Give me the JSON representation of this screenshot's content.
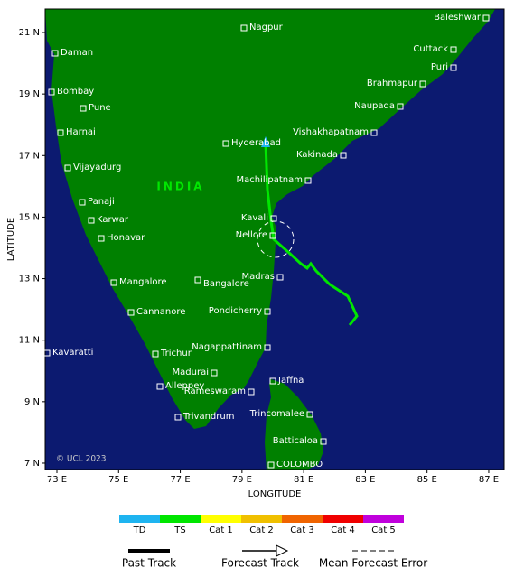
{
  "map": {
    "cities": [
      "Baleshwar",
      "Nagpur",
      "Daman",
      "Cuttack",
      "Puri",
      "Bombay",
      "Brahmapur",
      "Pune",
      "Naupada",
      "Harnai",
      "Vishakhapatnam",
      "Hyderabad",
      "Kakinada",
      "Vijayadurg",
      "Machilipatnam",
      "Panaji",
      "Kavali",
      "Karwar",
      "Nellore",
      "Honavar",
      "Madras",
      "Mangalore",
      "Bangalore",
      "Cannanore",
      "Pondicherry",
      "Nagappattinam",
      "Trichur",
      "Kavaratti",
      "Madurai",
      "Jaffna",
      "Alleppey",
      "Rameswaram",
      "Trincomalee",
      "Trivandrum",
      "Batticaloa",
      "COLOMBO"
    ],
    "country_label": "INDIA",
    "copyright": "© UCL 2023",
    "lat_ticks": [
      {
        "value": 7,
        "label": "7 N"
      },
      {
        "value": 9,
        "label": "9 N"
      },
      {
        "value": 11,
        "label": "11 N"
      },
      {
        "value": 13,
        "label": "13 N"
      },
      {
        "value": 15,
        "label": "15 N"
      },
      {
        "value": 17,
        "label": "17 N"
      },
      {
        "value": 19,
        "label": "19 N"
      },
      {
        "value": 21,
        "label": "21 N"
      }
    ],
    "lon_ticks": [
      {
        "value": 73,
        "label": "73 E"
      },
      {
        "value": 75,
        "label": "75 E"
      },
      {
        "value": 77,
        "label": "77 E"
      },
      {
        "value": 79,
        "label": "79 E"
      },
      {
        "value": 81,
        "label": "81 E"
      },
      {
        "value": 83,
        "label": "83 E"
      },
      {
        "value": 85,
        "label": "85 E"
      },
      {
        "value": 87,
        "label": "87 E"
      }
    ],
    "y_axis_label": "LATITUDE",
    "x_axis_label": "LONGITUDE"
  },
  "legend": {
    "intensity": [
      {
        "name": "TD",
        "color": "#1eb4f0"
      },
      {
        "name": "TS",
        "color": "#00e600"
      },
      {
        "name": "Cat 1",
        "color": "#ffff00"
      },
      {
        "name": "Cat 2",
        "color": "#f0c000"
      },
      {
        "name": "Cat 3",
        "color": "#f06400"
      },
      {
        "name": "Cat 4",
        "color": "#f00000"
      },
      {
        "name": "Cat 5",
        "color": "#c000dc"
      }
    ],
    "lines": [
      "Past Track",
      "Forecast Track",
      "Mean Forecast Error"
    ]
  }
}
